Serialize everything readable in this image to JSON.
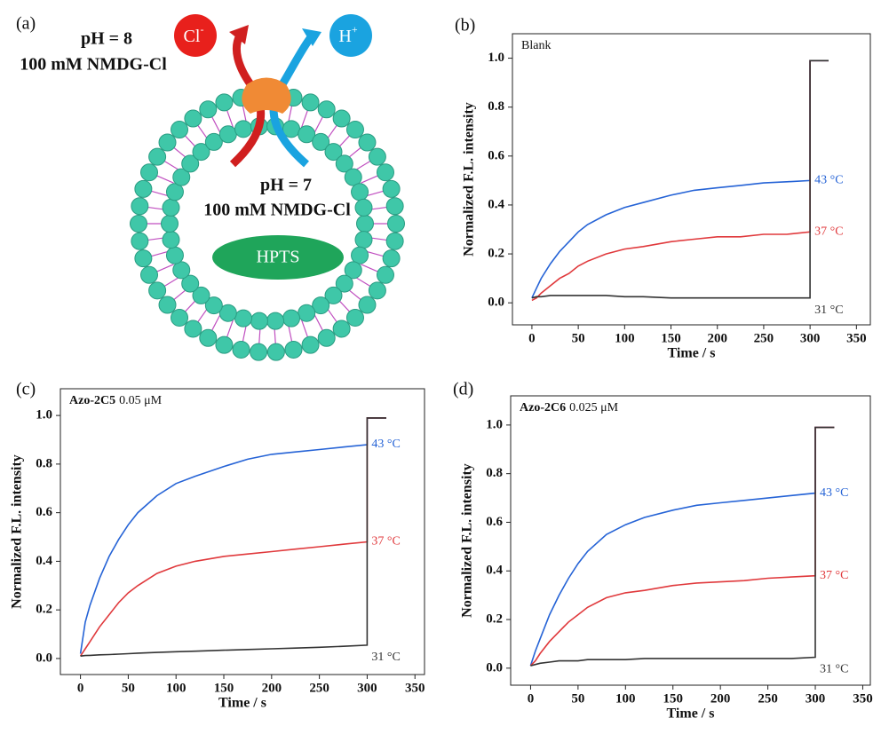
{
  "diagram": {
    "panel_label": "(a)",
    "outside_ph": "pH = 8",
    "outside_salt": "100 mM NMDG-Cl",
    "inside_ph": "pH = 7",
    "inside_salt": "100 mM NMDG-Cl",
    "chloride": "Cl",
    "chloride_charge": "-",
    "proton": "H",
    "proton_charge": "+",
    "dye": "HPTS"
  },
  "chart_data": [
    {
      "type": "line",
      "panel_label": "(b)",
      "annotation": {
        "compound": "Blank"
      },
      "xlabel": "Time / s",
      "ylabel": "Normalized F.L. intensity",
      "x": [
        0,
        5,
        10,
        20,
        30,
        40,
        50,
        60,
        80,
        100,
        120,
        150,
        175,
        200,
        225,
        250,
        275,
        300,
        300,
        310,
        320
      ],
      "series": [
        {
          "name": "43 °C",
          "color": "#2563d6",
          "values": [
            0.02,
            0.06,
            0.1,
            0.16,
            0.21,
            0.25,
            0.29,
            0.32,
            0.36,
            0.39,
            0.41,
            0.44,
            0.46,
            0.47,
            0.48,
            0.49,
            0.495,
            0.5,
            0.99,
            0.99,
            0.99
          ]
        },
        {
          "name": "37 °C",
          "color": "#e0393c",
          "values": [
            0.01,
            0.02,
            0.04,
            0.07,
            0.1,
            0.12,
            0.15,
            0.17,
            0.2,
            0.22,
            0.23,
            0.25,
            0.26,
            0.27,
            0.27,
            0.28,
            0.28,
            0.29,
            0.99,
            0.99,
            0.99
          ]
        },
        {
          "name": "31 °C",
          "color": "#333333",
          "values": [
            0.02,
            0.025,
            0.025,
            0.03,
            0.03,
            0.03,
            0.03,
            0.03,
            0.03,
            0.025,
            0.025,
            0.02,
            0.02,
            0.02,
            0.02,
            0.02,
            0.02,
            0.02,
            0.99,
            0.99,
            0.99
          ]
        }
      ],
      "xlim": [
        -21,
        365
      ],
      "ylim": [
        -0.09,
        1.1
      ],
      "xticks": [
        0,
        50,
        100,
        150,
        200,
        250,
        300,
        350
      ],
      "yticks": [
        {
          "value": 0,
          "label": "0.0"
        },
        0.2,
        0.4,
        0.6,
        0.8,
        {
          "value": 1,
          "label": "1.0"
        }
      ]
    },
    {
      "type": "line",
      "panel_label": "(c)",
      "annotation": {
        "compound": "Azo-2C5",
        "concentration": "0.05 μM"
      },
      "xlabel": "Time / s",
      "ylabel": "Normalized F.L. intensity",
      "x": [
        0,
        5,
        10,
        20,
        30,
        40,
        50,
        60,
        80,
        100,
        120,
        150,
        175,
        200,
        225,
        250,
        275,
        300,
        300,
        310,
        320
      ],
      "series": [
        {
          "name": "43 °C",
          "color": "#2563d6",
          "values": [
            0.02,
            0.15,
            0.22,
            0.33,
            0.42,
            0.49,
            0.55,
            0.6,
            0.67,
            0.72,
            0.75,
            0.79,
            0.82,
            0.84,
            0.85,
            0.86,
            0.87,
            0.88,
            0.99,
            0.99,
            0.99
          ]
        },
        {
          "name": "37 °C",
          "color": "#e0393c",
          "values": [
            0.01,
            0.04,
            0.07,
            0.13,
            0.18,
            0.23,
            0.27,
            0.3,
            0.35,
            0.38,
            0.4,
            0.42,
            0.43,
            0.44,
            0.45,
            0.46,
            0.47,
            0.48,
            0.99,
            0.99,
            0.99
          ]
        },
        {
          "name": "31 °C",
          "color": "#333333",
          "values": [
            0.01,
            0.012,
            0.013,
            0.015,
            0.016,
            0.018,
            0.02,
            0.022,
            0.025,
            0.028,
            0.03,
            0.034,
            0.037,
            0.04,
            0.043,
            0.046,
            0.05,
            0.055,
            0.99,
            0.99,
            0.99
          ]
        }
      ],
      "xlim": [
        -21,
        360
      ],
      "ylim": [
        -0.066,
        1.11
      ],
      "xticks": [
        0,
        50,
        100,
        150,
        200,
        250,
        300,
        350
      ],
      "yticks": [
        {
          "value": 0,
          "label": "0.0"
        },
        0.2,
        0.4,
        0.6,
        0.8,
        {
          "value": 1,
          "label": "1.0"
        }
      ]
    },
    {
      "type": "line",
      "panel_label": "(d)",
      "annotation": {
        "compound": "Azo-2C6",
        "concentration": "0.025 μM"
      },
      "xlabel": "Time / s",
      "ylabel": "Normalized F.L. intensity",
      "x": [
        0,
        5,
        10,
        20,
        30,
        40,
        50,
        60,
        80,
        100,
        120,
        150,
        175,
        200,
        225,
        250,
        275,
        300,
        300,
        310,
        320
      ],
      "series": [
        {
          "name": "43 °C",
          "color": "#2563d6",
          "values": [
            0.01,
            0.07,
            0.12,
            0.22,
            0.3,
            0.37,
            0.43,
            0.48,
            0.55,
            0.59,
            0.62,
            0.65,
            0.67,
            0.68,
            0.69,
            0.7,
            0.71,
            0.72,
            0.99,
            0.99,
            0.99
          ]
        },
        {
          "name": "37 °C",
          "color": "#e0393c",
          "values": [
            0.01,
            0.03,
            0.06,
            0.11,
            0.15,
            0.19,
            0.22,
            0.25,
            0.29,
            0.31,
            0.32,
            0.34,
            0.35,
            0.355,
            0.36,
            0.37,
            0.375,
            0.38,
            0.99,
            0.99,
            0.99
          ]
        },
        {
          "name": "31 °C",
          "color": "#333333",
          "values": [
            0.01,
            0.015,
            0.02,
            0.025,
            0.03,
            0.03,
            0.03,
            0.035,
            0.035,
            0.035,
            0.04,
            0.04,
            0.04,
            0.04,
            0.04,
            0.04,
            0.04,
            0.045,
            0.99,
            0.99,
            0.99
          ]
        }
      ],
      "xlim": [
        -21,
        358
      ],
      "ylim": [
        -0.07,
        1.12
      ],
      "xticks": [
        0,
        50,
        100,
        150,
        200,
        250,
        300,
        350
      ],
      "yticks": [
        {
          "value": 0,
          "label": "0.0"
        },
        0.2,
        0.4,
        0.6,
        0.8,
        {
          "value": 1,
          "label": "1.0"
        }
      ]
    }
  ]
}
